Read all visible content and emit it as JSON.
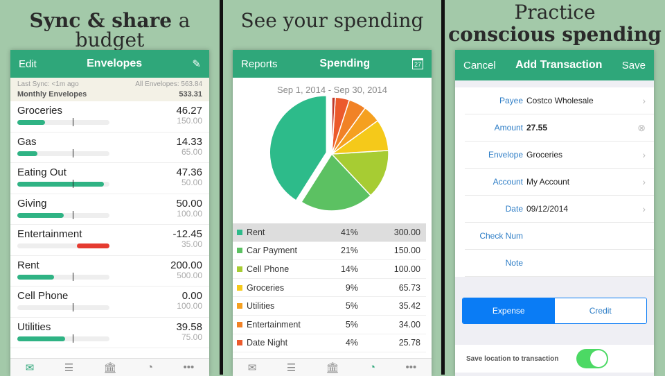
{
  "headlines": {
    "p1_bold": "Sync &",
    "p1_mid": " share ",
    "p1_rest": "a budget",
    "p2": "See your spending",
    "p3_line1": "Practice",
    "p3_line2": "conscious spending"
  },
  "envelopes": {
    "nav": {
      "left": "Edit",
      "title": "Envelopes",
      "right_icon": "compose-icon"
    },
    "summary": {
      "last_sync": "Last Sync: <1m ago",
      "all": "All Envelopes: 563.84",
      "monthly_label": "Monthly Envelopes",
      "monthly_value": "533.31"
    },
    "items": [
      {
        "name": "Groceries",
        "balance": "46.27",
        "budget": "150.00",
        "fill": 0.3,
        "color": "#2fb384"
      },
      {
        "name": "Gas",
        "balance": "14.33",
        "budget": "65.00",
        "fill": 0.22,
        "color": "#2fb384"
      },
      {
        "name": "Eating Out",
        "balance": "47.36",
        "budget": "50.00",
        "fill": 0.94,
        "color": "#2fb384"
      },
      {
        "name": "Giving",
        "balance": "50.00",
        "budget": "100.00",
        "fill": 0.5,
        "color": "#2fb384"
      },
      {
        "name": "Entertainment",
        "balance": "-12.45",
        "budget": "35.00",
        "fill": -0.35,
        "color": "#e53b30"
      },
      {
        "name": "Rent",
        "balance": "200.00",
        "budget": "500.00",
        "fill": 0.4,
        "color": "#2fb384"
      },
      {
        "name": "Cell Phone",
        "balance": "0.00",
        "budget": "100.00",
        "fill": 0,
        "color": "#2fb384"
      },
      {
        "name": "Utilities",
        "balance": "39.58",
        "budget": "75.00",
        "fill": 0.52,
        "color": "#2fb384"
      }
    ],
    "month_marker": 0.6
  },
  "spending": {
    "nav": {
      "left": "Reports",
      "title": "Spending",
      "right_icon": "calendar-icon",
      "calendar_day": "27"
    },
    "date_range": "Sep 1, 2014 - Sep 30, 2014",
    "rows": [
      {
        "name": "Rent",
        "pct": "41%",
        "amount": "300.00",
        "share": 41,
        "color": "#2dbb8a"
      },
      {
        "name": "Car Payment",
        "pct": "21%",
        "amount": "150.00",
        "share": 21,
        "color": "#5cc162"
      },
      {
        "name": "Cell Phone",
        "pct": "14%",
        "amount": "100.00",
        "share": 14,
        "color": "#a7cc33"
      },
      {
        "name": "Groceries",
        "pct": "9%",
        "amount": "65.73",
        "share": 9,
        "color": "#f5c91a"
      },
      {
        "name": "Utilities",
        "pct": "5%",
        "amount": "35.42",
        "share": 5,
        "color": "#f5a020"
      },
      {
        "name": "Entertainment",
        "pct": "5%",
        "amount": "34.00",
        "share": 5,
        "color": "#f18226"
      },
      {
        "name": "Date Night",
        "pct": "4%",
        "amount": "25.78",
        "share": 4,
        "color": "#ec5a2c"
      }
    ]
  },
  "transaction": {
    "nav": {
      "left": "Cancel",
      "title": "Add Transaction",
      "right": "Save"
    },
    "fields": [
      {
        "label": "Payee",
        "value": "Costco Wholesale",
        "accessory": "›"
      },
      {
        "label": "Amount",
        "value": "27.55",
        "accessory": "⊗"
      },
      {
        "label": "Envelope",
        "value": "Groceries",
        "accessory": "›"
      },
      {
        "label": "Account",
        "value": "My Account",
        "accessory": "›"
      },
      {
        "label": "Date",
        "value": "09/12/2014",
        "accessory": "›"
      },
      {
        "label": "Check Num",
        "value": "",
        "accessory": ""
      },
      {
        "label": "Note",
        "value": "",
        "accessory": ""
      }
    ],
    "segment": {
      "expense": "Expense",
      "credit": "Credit",
      "selected": "Expense"
    },
    "save_location_label": "Save location to transaction",
    "save_location_on": true
  },
  "tabbar": [
    "envelopes-icon",
    "list-icon",
    "bank-icon",
    "pie-chart-icon",
    "more-icon"
  ]
}
